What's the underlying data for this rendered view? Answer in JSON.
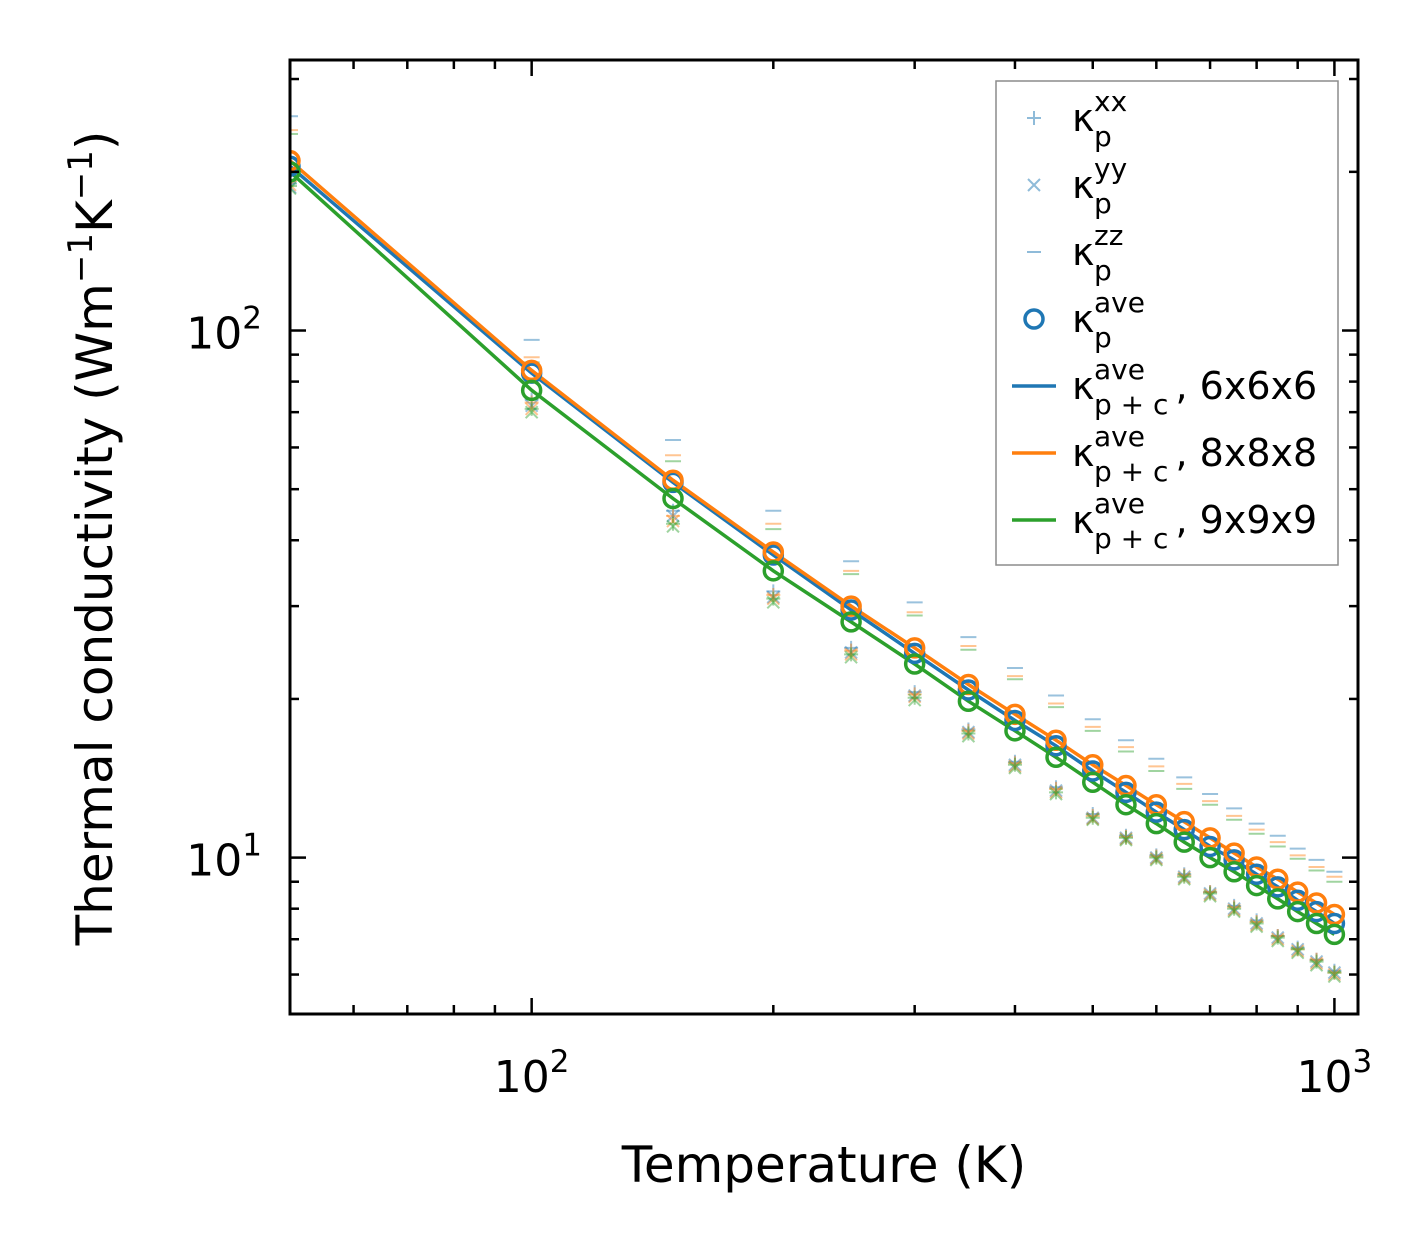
{
  "chart_data": {
    "type": "scatter",
    "xlabel": "Temperature (K)",
    "ylabel": "Thermal conductivity (Wm",
    "ylabel_parts": [
      "Thermal conductivity (Wm",
      "−1",
      "K",
      "−1",
      ")"
    ],
    "xscale": "log",
    "yscale": "log",
    "xlim": [
      50,
      1070
    ],
    "ylim": [
      5.05,
      326
    ],
    "x_ticks": [
      {
        "value": 100,
        "base": "10",
        "exp": "2"
      },
      {
        "value": 1000,
        "base": "10",
        "exp": "3"
      }
    ],
    "y_ticks": [
      {
        "value": 10,
        "base": "10",
        "exp": "1"
      },
      {
        "value": 100,
        "base": "10",
        "exp": "2"
      }
    ],
    "x": [
      50,
      100,
      150,
      200,
      250,
      300,
      350,
      400,
      450,
      500,
      550,
      600,
      650,
      700,
      750,
      800,
      850,
      900,
      950,
      1000
    ],
    "series": [
      {
        "name": "6x6x6",
        "color": "#1f77b4",
        "ave": [
          205,
          83,
          51.5,
          37.5,
          29.5,
          24.4,
          20.8,
          18.2,
          16.3,
          14.6,
          13.3,
          12.2,
          11.3,
          10.5,
          9.9,
          9.3,
          8.8,
          8.3,
          7.9,
          7.5
        ],
        "line": [
          205,
          83,
          51.5,
          37.5,
          29.5,
          24.4,
          20.8,
          18.2,
          16.3,
          14.6,
          13.3,
          12.2,
          11.3,
          10.5,
          9.9,
          9.3,
          8.8,
          8.3,
          7.9,
          7.5
        ],
        "xx": [
          190,
          74,
          45.5,
          32,
          25,
          20.6,
          17.5,
          15.2,
          13.6,
          12.1,
          11.0,
          10.1,
          9.3,
          8.6,
          8.1,
          7.6,
          7.1,
          6.75,
          6.4,
          6.1
        ],
        "yy": [
          187,
          72,
          44.5,
          31.2,
          24.5,
          20.3,
          17.3,
          15.0,
          13.4,
          11.9,
          10.9,
          10.0,
          9.2,
          8.55,
          8.0,
          7.5,
          7.05,
          6.7,
          6.35,
          6.05
        ],
        "zz": [
          255,
          96,
          62,
          45.5,
          36.5,
          30.5,
          26.2,
          22.9,
          20.3,
          18.3,
          16.7,
          15.4,
          14.2,
          13.2,
          12.4,
          11.6,
          11.0,
          10.4,
          9.9,
          9.4
        ]
      },
      {
        "name": "8x8x8",
        "color": "#ff7f0e",
        "ave": [
          210,
          84,
          52,
          38,
          30,
          25,
          21.3,
          18.7,
          16.7,
          15.0,
          13.7,
          12.6,
          11.7,
          10.9,
          10.2,
          9.6,
          9.1,
          8.6,
          8.2,
          7.8
        ],
        "line": [
          210,
          84,
          52,
          38,
          30,
          25,
          21.3,
          18.7,
          16.7,
          15.0,
          13.7,
          12.6,
          11.7,
          10.9,
          10.2,
          9.6,
          9.1,
          8.6,
          8.2,
          7.8
        ],
        "xx": [
          192,
          73,
          44.5,
          31.5,
          24.7,
          20.4,
          17.4,
          15.1,
          13.5,
          12.0,
          10.95,
          10.05,
          9.25,
          8.6,
          8.05,
          7.55,
          7.1,
          6.7,
          6.4,
          6.05
        ],
        "yy": [
          189,
          71,
          43.5,
          31,
          24.3,
          20.2,
          17.2,
          14.9,
          13.3,
          11.85,
          10.85,
          9.95,
          9.15,
          8.5,
          7.95,
          7.45,
          7.0,
          6.65,
          6.3,
          6.0
        ],
        "zz": [
          240,
          89,
          58,
          43,
          35,
          29.2,
          25.2,
          22.1,
          19.6,
          17.7,
          16.2,
          14.9,
          13.8,
          12.8,
          12.0,
          11.3,
          10.7,
          10.1,
          9.6,
          9.2
        ]
      },
      {
        "name": "9x9x9",
        "color": "#2ca02c",
        "ave": [
          200,
          77,
          48,
          35,
          28,
          23.3,
          19.8,
          17.4,
          15.5,
          13.9,
          12.6,
          11.6,
          10.7,
          10.0,
          9.4,
          8.85,
          8.35,
          7.9,
          7.5,
          7.15
        ],
        "line": [
          200,
          77,
          48,
          35,
          28,
          23.3,
          19.8,
          17.4,
          15.5,
          13.9,
          12.6,
          11.6,
          10.7,
          10.0,
          9.4,
          8.85,
          8.35,
          7.9,
          7.5,
          7.15
        ],
        "xx": [
          188,
          71,
          43,
          31,
          24.3,
          20.1,
          17.2,
          15.0,
          13.3,
          11.9,
          10.9,
          10.0,
          9.2,
          8.55,
          8.0,
          7.5,
          7.05,
          6.7,
          6.35,
          6.05
        ],
        "yy": [
          186,
          70,
          42.5,
          30.5,
          24,
          19.9,
          17.0,
          14.8,
          13.2,
          11.8,
          10.8,
          9.9,
          9.1,
          8.45,
          7.9,
          7.4,
          6.95,
          6.6,
          6.25,
          5.95
        ],
        "zz": [
          236,
          87,
          56.5,
          42,
          34.5,
          28.8,
          24.8,
          21.8,
          19.3,
          17.4,
          15.9,
          14.6,
          13.5,
          12.6,
          11.8,
          11.1,
          10.5,
          9.95,
          9.45,
          9.0
        ]
      }
    ],
    "legend": {
      "position": "upper right",
      "entries": [
        {
          "symbol": "+",
          "kind": "marker-plus",
          "base": "κ",
          "sub": "p",
          "sup": "xx",
          "suffix": ""
        },
        {
          "symbol": "×",
          "kind": "marker-x",
          "base": "κ",
          "sub": "p",
          "sup": "yy",
          "suffix": ""
        },
        {
          "symbol": "_",
          "kind": "marker-dash",
          "base": "κ",
          "sub": "p",
          "sup": "zz",
          "suffix": ""
        },
        {
          "symbol": "o",
          "kind": "marker-circle",
          "base": "κ",
          "sub": "p",
          "sup": "ave",
          "suffix": ""
        },
        {
          "symbol": "line",
          "kind": "line-blue",
          "base": "κ",
          "sub": "p + c",
          "sup": "ave",
          "suffix": ", 6x6x6"
        },
        {
          "symbol": "line",
          "kind": "line-orange",
          "base": "κ",
          "sub": "p + c",
          "sup": "ave",
          "suffix": ", 8x8x8"
        },
        {
          "symbol": "line",
          "kind": "line-green",
          "base": "κ",
          "sub": "p + c",
          "sup": "ave",
          "suffix": ", 9x9x9"
        }
      ]
    }
  }
}
